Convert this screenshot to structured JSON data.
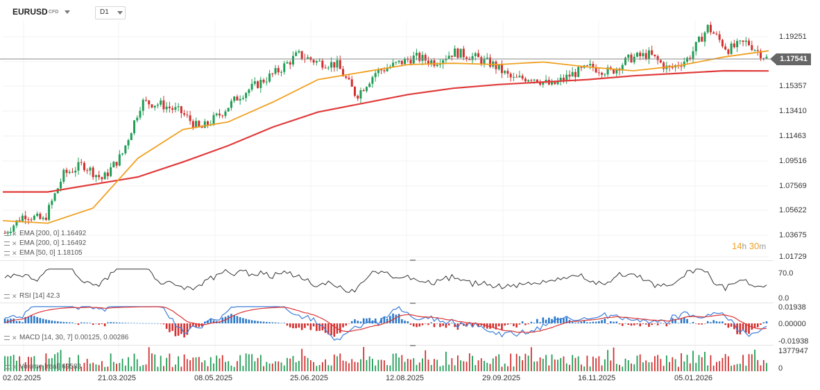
{
  "toolbar": {
    "symbol": "EURUSD",
    "instrument_type": "CFD",
    "timeframe": "D1"
  },
  "price_axis": {
    "ticks": [
      "1.19251",
      "1.17304",
      "1.15357",
      "1.13410",
      "1.11463",
      "1.09516",
      "1.07569",
      "1.05622",
      "1.03675",
      "1.01729"
    ],
    "current_price": "1.17541"
  },
  "countdown": {
    "hours": "14",
    "h_unit": "h",
    "minutes": "30",
    "m_unit": "m"
  },
  "legend": {
    "ema200_a": "EMA [200, 0]  1.16492",
    "ema200_b": "EMA [200, 0]  1.16492",
    "ema50": "EMA [50, 0]  1.18105"
  },
  "rsi": {
    "label": "RSI [14]  42.3",
    "ticks": [
      "70.0",
      "0.0"
    ]
  },
  "macd": {
    "label": "MACD [14, 30, 7]  0.00125,  0.00286",
    "ticks": [
      "0.01938",
      "0.00000",
      "-0.01938"
    ]
  },
  "volume": {
    "label": "Volume [real]  69583",
    "ticks": [
      "1377947",
      "0"
    ]
  },
  "x_axis": [
    "02.02.2025",
    "21.03.2025",
    "08.05.2025",
    "25.06.2025",
    "12.08.2025",
    "29.09.2025",
    "16.11.2025",
    "05.01.2026"
  ],
  "colors": {
    "bull": "#1f9d55",
    "bear": "#d32f2f",
    "ema50": "#f0a020",
    "ema200": "#e03a3a",
    "macd_line": "#3b7dd8",
    "signal_line": "#d33",
    "hist_pos": "#2a78c8",
    "hist_neg": "#d32f2f"
  },
  "chart_data": {
    "type": "line",
    "title": "",
    "x_start": "02.02.2025",
    "x_end": "03.02.2026",
    "ylim": [
      1.015,
      1.205
    ],
    "series": [
      {
        "name": "EMA [50, 0]",
        "values": [
          1.045,
          1.043,
          1.055,
          1.095,
          1.118,
          1.124,
          1.14,
          1.158,
          1.164,
          1.17,
          1.171,
          1.17,
          1.172,
          1.168,
          1.165,
          1.169,
          1.176,
          1.181
        ]
      },
      {
        "name": "EMA [200, 0]",
        "values": [
          1.068,
          1.068,
          1.074,
          1.08,
          1.092,
          1.105,
          1.12,
          1.132,
          1.139,
          1.146,
          1.151,
          1.154,
          1.156,
          1.158,
          1.161,
          1.163,
          1.165,
          1.1649
        ]
      }
    ],
    "close_path": [
      1.035,
      1.05,
      1.045,
      1.082,
      1.09,
      1.078,
      1.098,
      1.14,
      1.138,
      1.132,
      1.118,
      1.13,
      1.145,
      1.155,
      1.165,
      1.178,
      1.172,
      1.17,
      1.145,
      1.164,
      1.17,
      1.176,
      1.172,
      1.18,
      1.176,
      1.17,
      1.158,
      1.16,
      1.153,
      1.162,
      1.168,
      1.164,
      1.175,
      1.178,
      1.166,
      1.175,
      1.2,
      1.182,
      1.188,
      1.175
    ],
    "rsi_range": [
      0,
      100
    ],
    "macd_range": [
      -0.01938,
      0.01938
    ]
  }
}
